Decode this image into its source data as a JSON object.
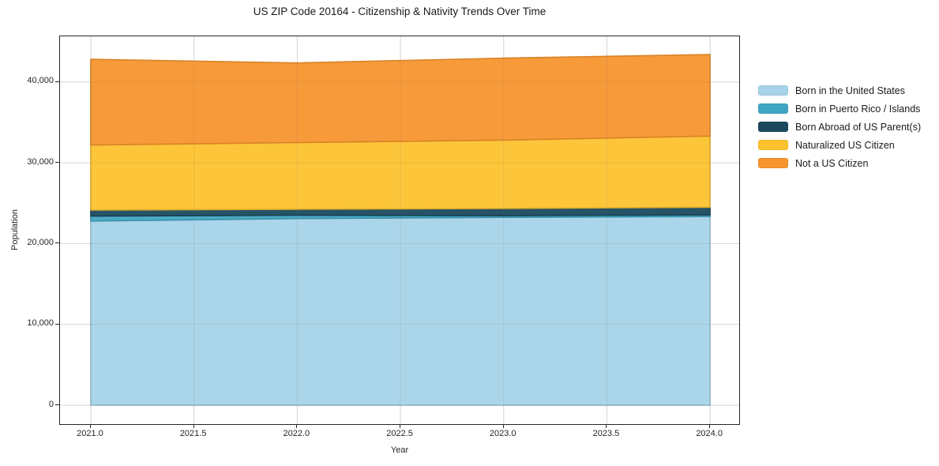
{
  "page": {
    "title": "US ZIP Code 20164 - Citizenship & Nativity Trends Over Time"
  },
  "chart_data": {
    "type": "area",
    "stacked": true,
    "title": "US ZIP Code 20164 - Citizenship & Nativity Trends Over Time",
    "xlabel": "Year",
    "ylabel": "Population",
    "x": [
      2021,
      2022,
      2023,
      2024
    ],
    "series": [
      {
        "name": "Born in the United States",
        "color": "#a6d3e8",
        "values": [
          22800,
          23100,
          23250,
          23350
        ]
      },
      {
        "name": "Born in Puerto Rico / Islands",
        "color": "#41a6c4",
        "values": [
          600,
          400,
          200,
          200
        ]
      },
      {
        "name": "Born Abroad of US Parent(s)",
        "color": "#1b4a5e",
        "values": [
          750,
          750,
          900,
          950
        ]
      },
      {
        "name": "Naturalized US Citizen",
        "color": "#fdc32f",
        "values": [
          8050,
          8250,
          8450,
          8800
        ]
      },
      {
        "name": "Not a US Citizen",
        "color": "#f7952e",
        "values": [
          10600,
          9850,
          10150,
          10100
        ]
      }
    ],
    "stack_totals": [
      42800,
      42350,
      42950,
      43400
    ],
    "x_ticks": {
      "values": [
        2021.0,
        2021.5,
        2022.0,
        2022.5,
        2023.0,
        2023.5,
        2024.0
      ],
      "labels": [
        "2021.0",
        "2021.5",
        "2022.0",
        "2022.5",
        "2023.0",
        "2023.5",
        "2024.0"
      ]
    },
    "y_ticks": {
      "values": [
        0,
        10000,
        20000,
        30000,
        40000
      ],
      "labels": [
        "0",
        "10,000",
        "20,000",
        "30,000",
        "40,000"
      ]
    },
    "xlim": [
      2020.851,
      2024.141
    ],
    "ylim": [
      -2335,
      45645
    ],
    "grid": true,
    "legend_position": "right"
  },
  "colors": {
    "background": "#ffffff",
    "spine": "#262626",
    "grid_under": "#e7e7e7",
    "grid_over": "rgba(120,120,120,0.15)",
    "text": "#1a1a1a"
  }
}
